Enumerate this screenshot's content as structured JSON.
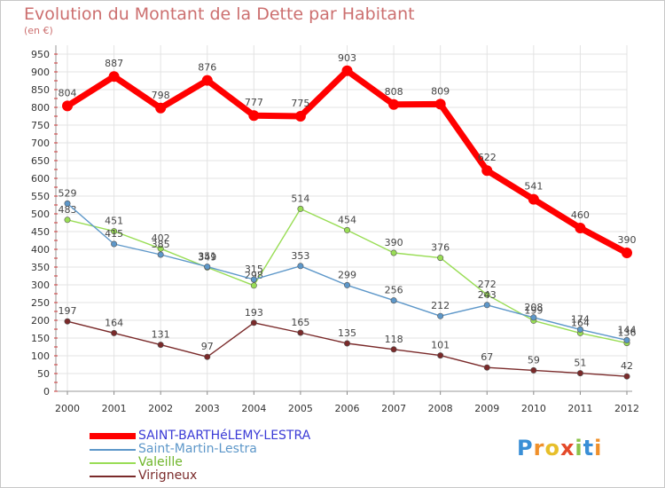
{
  "chart_data": {
    "type": "line",
    "title": "Evolution du Montant de la Dette par Habitant",
    "subtitle": "(en €)",
    "x": [
      "2000",
      "2001",
      "2002",
      "2003",
      "2004",
      "2005",
      "2006",
      "2007",
      "2008",
      "2009",
      "2010",
      "2011",
      "2012"
    ],
    "ylim": [
      0,
      950
    ],
    "yticks": [
      0,
      50,
      100,
      150,
      200,
      250,
      300,
      350,
      400,
      450,
      500,
      550,
      600,
      650,
      700,
      750,
      800,
      850,
      900,
      950
    ],
    "grid": true,
    "legend_position": "bottom-left",
    "series": [
      {
        "name": "SAINT-BARTHéLEMY-LESTRA",
        "color": "#ff0000",
        "values": [
          804,
          887,
          798,
          876,
          777,
          775,
          903,
          808,
          809,
          622,
          541,
          460,
          390
        ]
      },
      {
        "name": "Saint-Martin-Lestra",
        "color": "#5d97c9",
        "values": [
          529,
          415,
          385,
          351,
          315,
          353,
          299,
          256,
          212,
          243,
          208,
          174,
          144
        ]
      },
      {
        "name": "Valeille",
        "color": "#99dd55",
        "values": [
          483,
          451,
          402,
          349,
          298,
          514,
          454,
          390,
          376,
          272,
          199,
          164,
          136
        ]
      },
      {
        "name": "Virigneux",
        "color": "#7a2a2a",
        "values": [
          197,
          164,
          131,
          97,
          193,
          165,
          135,
          118,
          101,
          67,
          59,
          51,
          42
        ]
      }
    ]
  },
  "brand": {
    "letters": [
      "P",
      "r",
      "o",
      "x",
      "i",
      "t",
      "i"
    ],
    "colors": [
      "#3a8fd6",
      "#f0902a",
      "#e7bf2a",
      "#e44a2a",
      "#8bc34a",
      "#3a8fd6",
      "#f0902a"
    ]
  }
}
